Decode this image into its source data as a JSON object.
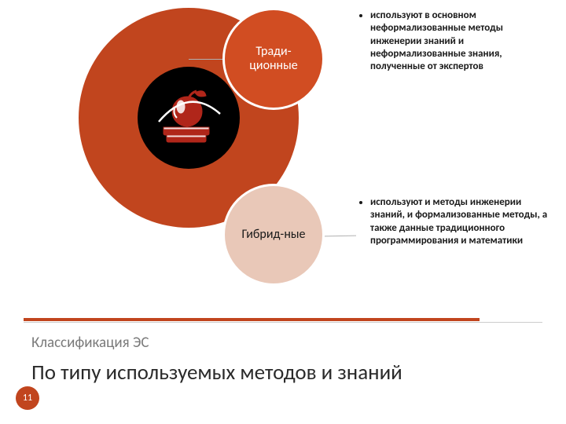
{
  "colors": {
    "big_circle_bg": "#c1451e",
    "small1_bg": "#d14d22",
    "small2_bg": "#e9c8b8",
    "line_color": "#b0b0b0",
    "divider_color": "#c1451e",
    "page_bg": "#c1451e"
  },
  "circle_trad_label": "Тради-\nционные",
  "circle_hyb_label": "Гибрид-ные",
  "bullet_trad": "используют в основном неформализованные методы инженерии знаний и неформализованные знания, полученные от экспертов",
  "bullet_hyb": "используют и методы инженерии знаний, и формализованные методы, а также данные традиционного программирования и математики",
  "subtitle": "Классификация ЭС",
  "title": "По типу используемых методов и знаний",
  "page_number": "11"
}
